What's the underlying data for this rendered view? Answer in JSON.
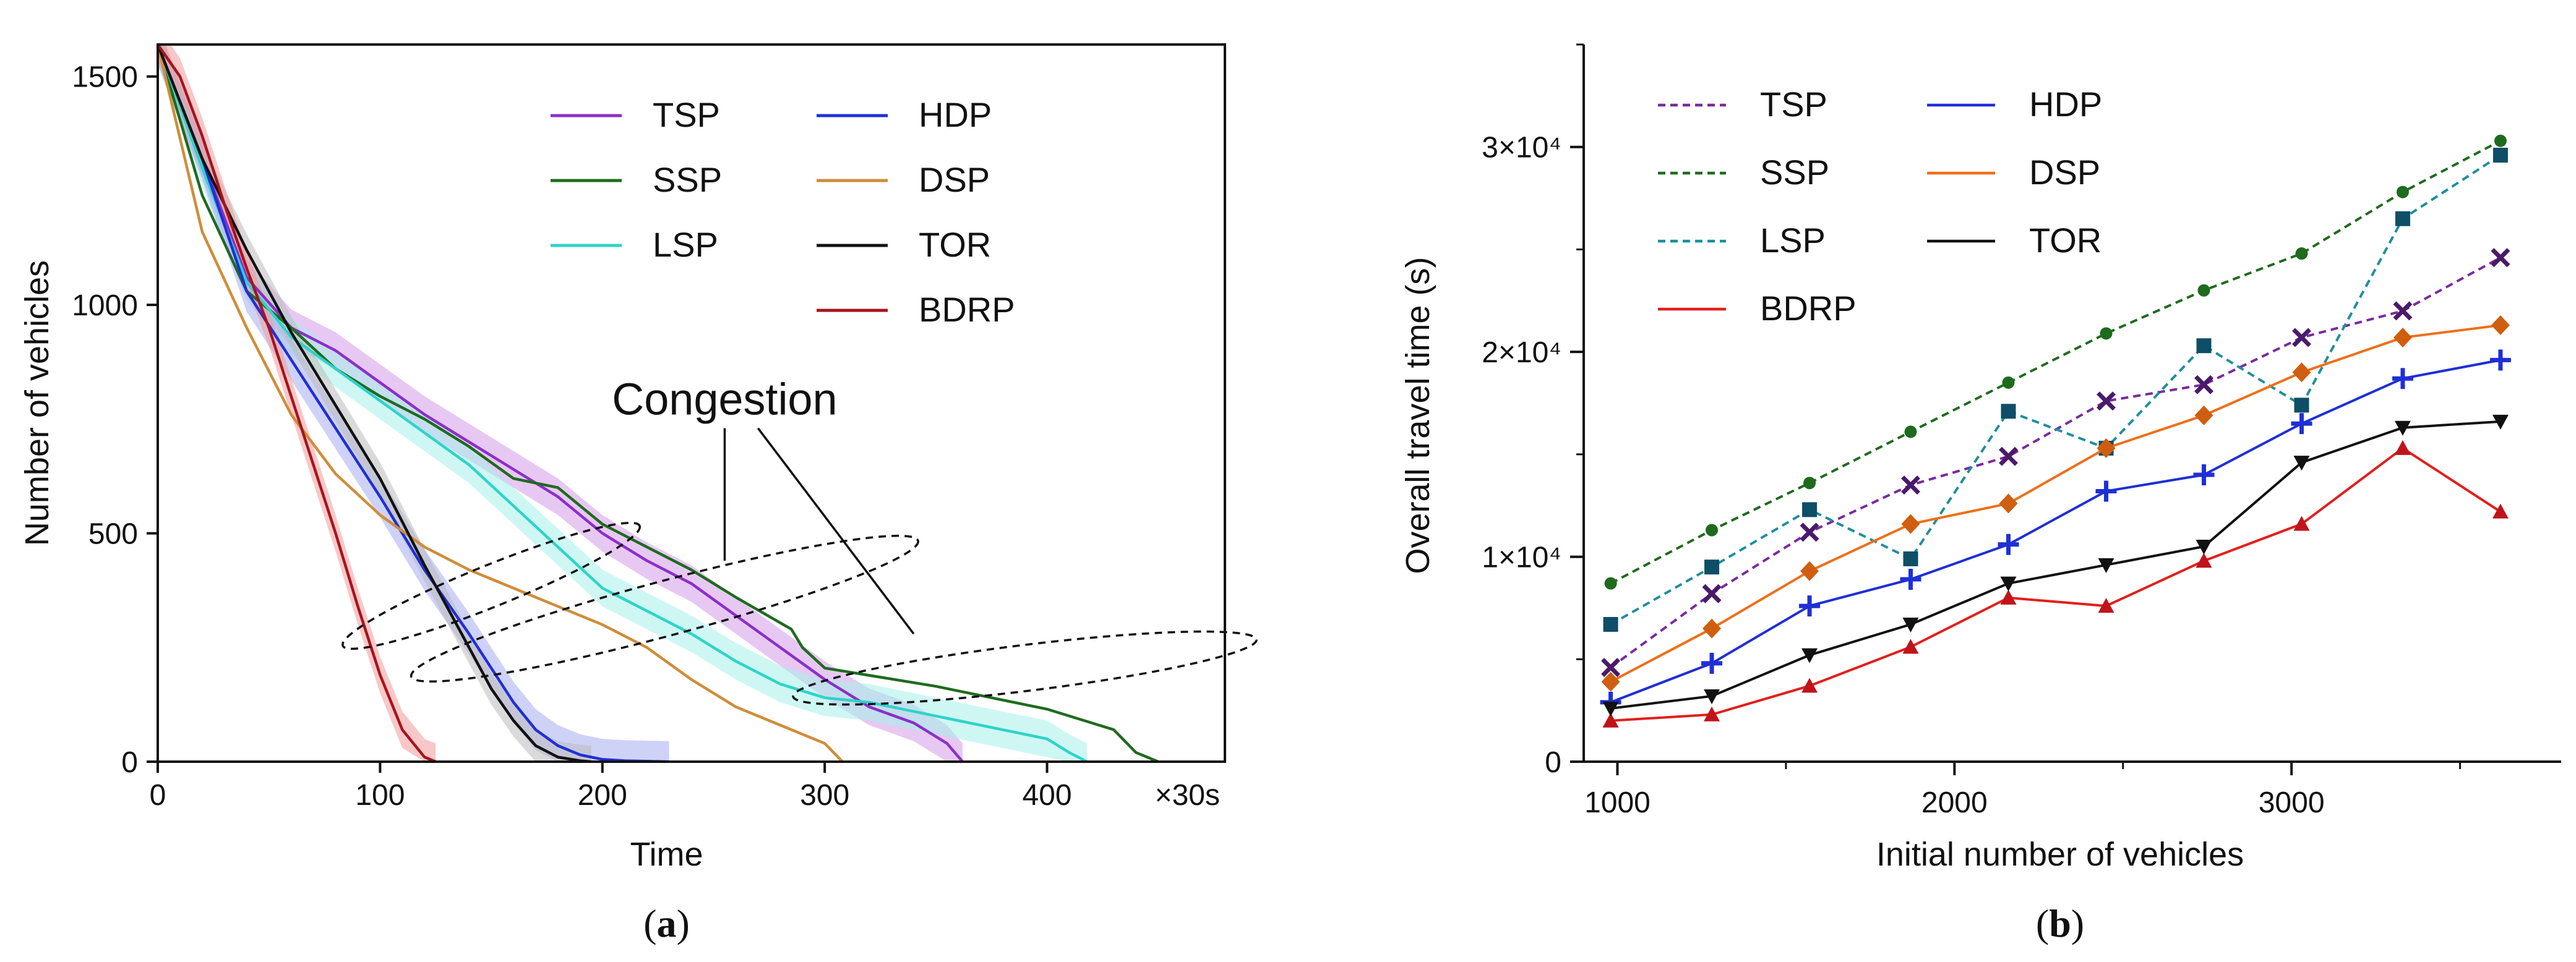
{
  "chart_data": [
    {
      "panel": "(a)",
      "panel_letter": "a",
      "type": "line",
      "xlabel": "Time",
      "ylabel": "Number of vehicles",
      "x_unit": "×30s",
      "xlim": [
        0,
        480
      ],
      "ylim": [
        0,
        1570
      ],
      "xticks": [
        0,
        100,
        200,
        300,
        400
      ],
      "yticks": [
        0,
        500,
        1000,
        1500
      ],
      "annotation": "Congestion",
      "legend_position": "top-right",
      "series": [
        {
          "name": "TSP",
          "color": "#8b2fc9",
          "band_color": "#d39be8",
          "x": [
            0,
            20,
            40,
            60,
            80,
            100,
            120,
            140,
            160,
            180,
            200,
            220,
            240,
            260,
            280,
            300,
            320,
            340,
            355,
            362
          ],
          "y": [
            1570,
            1320,
            1060,
            950,
            900,
            830,
            760,
            700,
            640,
            580,
            500,
            440,
            390,
            320,
            250,
            180,
            120,
            85,
            40,
            0
          ],
          "band": 40
        },
        {
          "name": "SSP",
          "color": "#1e6b1e",
          "x": [
            0,
            20,
            40,
            60,
            80,
            100,
            120,
            140,
            160,
            180,
            200,
            220,
            240,
            260,
            285,
            290,
            300,
            350,
            400,
            430,
            440,
            450
          ],
          "y": [
            1570,
            1240,
            1030,
            950,
            860,
            800,
            750,
            690,
            620,
            600,
            520,
            470,
            420,
            360,
            290,
            250,
            205,
            165,
            115,
            70,
            20,
            0
          ]
        },
        {
          "name": "LSP",
          "color": "#2ed3c8",
          "band_color": "#a6f0ea",
          "x": [
            0,
            20,
            40,
            60,
            80,
            100,
            120,
            140,
            160,
            180,
            200,
            220,
            240,
            260,
            280,
            300,
            320,
            340,
            360,
            380,
            400,
            410,
            418
          ],
          "y": [
            1570,
            1300,
            1050,
            930,
            860,
            790,
            720,
            650,
            560,
            470,
            380,
            330,
            280,
            220,
            170,
            140,
            130,
            110,
            90,
            70,
            50,
            20,
            0
          ],
          "band": 40
        },
        {
          "name": "HDP",
          "color": "#1f2fd6",
          "band_color": "#a7adf0",
          "x": [
            0,
            20,
            40,
            60,
            80,
            100,
            120,
            140,
            160,
            170,
            180,
            190,
            200,
            210,
            220,
            230
          ],
          "y": [
            1570,
            1320,
            1030,
            880,
            730,
            580,
            420,
            280,
            130,
            70,
            35,
            15,
            5,
            2,
            1,
            0
          ],
          "band": 45
        },
        {
          "name": "DSP",
          "color": "#cf8d3a",
          "x": [
            0,
            20,
            40,
            60,
            80,
            100,
            120,
            140,
            160,
            180,
            200,
            220,
            240,
            260,
            280,
            300,
            308
          ],
          "y": [
            1570,
            1160,
            950,
            760,
            630,
            540,
            470,
            420,
            380,
            340,
            300,
            250,
            180,
            120,
            80,
            40,
            0
          ]
        },
        {
          "name": "TOR",
          "color": "#111111",
          "band_color": "#bbbbbb",
          "x": [
            0,
            20,
            40,
            60,
            80,
            100,
            120,
            140,
            150,
            160,
            170,
            180,
            190,
            195
          ],
          "y": [
            1570,
            1320,
            1120,
            940,
            780,
            620,
            430,
            250,
            160,
            90,
            35,
            10,
            2,
            0
          ],
          "band": 35
        },
        {
          "name": "BDRP",
          "color": "#a8141c",
          "band_color": "#f29a9a",
          "x": [
            0,
            10,
            20,
            30,
            40,
            50,
            60,
            70,
            80,
            90,
            100,
            110,
            120,
            125
          ],
          "y": [
            1570,
            1500,
            1370,
            1220,
            1080,
            950,
            800,
            650,
            500,
            340,
            190,
            70,
            10,
            0
          ],
          "band": 40
        }
      ]
    },
    {
      "panel": "(b)",
      "panel_letter": "b",
      "type": "line",
      "xlabel": "Initial number of vehicles",
      "ylabel": "Overall travel time (s)",
      "xlim": [
        900,
        3800
      ],
      "ylim": [
        0,
        35000
      ],
      "xticks": [
        1000,
        2000,
        3000
      ],
      "yticks": [
        {
          "value": 0,
          "label": "0"
        },
        {
          "value": 10000,
          "label": "1×10⁴"
        },
        {
          "value": 20000,
          "label": "2×10⁴"
        },
        {
          "value": 30000,
          "label": "3×10⁴"
        }
      ],
      "legend_position": "top-left",
      "x": [
        980,
        1280,
        1570,
        1870,
        2160,
        2450,
        2740,
        3030,
        3330,
        3620
      ],
      "series": [
        {
          "name": "TSP",
          "color": "#7a2a9e",
          "marker_color": "#4a1a6a",
          "dashed": true,
          "marker": "x",
          "values": [
            4600,
            8200,
            11200,
            13500,
            14900,
            17600,
            18400,
            20700,
            22000,
            24600
          ]
        },
        {
          "name": "SSP",
          "color": "#1e6b1e",
          "dashed": true,
          "marker": "circle",
          "values": [
            8700,
            11300,
            13600,
            16100,
            18500,
            20900,
            23000,
            24800,
            27800,
            30300
          ]
        },
        {
          "name": "LSP",
          "color": "#1e8e9e",
          "marker_color": "#0e4e66",
          "dashed": true,
          "marker": "square",
          "values": [
            6700,
            9500,
            12300,
            9900,
            17100,
            15300,
            20300,
            17400,
            26500,
            29600
          ]
        },
        {
          "name": "BDRP",
          "color": "#e0201c",
          "marker_color": "#c0141a",
          "dashed": false,
          "marker": "triangle",
          "values": [
            2000,
            2300,
            3700,
            5600,
            8000,
            7600,
            9800,
            11600,
            15300,
            12200
          ]
        },
        {
          "name": "HDP",
          "color": "#1f2fd6",
          "dashed": false,
          "marker": "plus",
          "values": [
            2900,
            4800,
            7600,
            8900,
            10600,
            13200,
            14000,
            16500,
            18700,
            19600
          ]
        },
        {
          "name": "DSP",
          "color": "#ee6f1a",
          "marker_color": "#cf5e10",
          "dashed": false,
          "marker": "diamond",
          "values": [
            3900,
            6500,
            9300,
            11600,
            12600,
            15300,
            16900,
            19000,
            20700,
            21300
          ]
        },
        {
          "name": "TOR",
          "color": "#111111",
          "dashed": false,
          "marker": "triangle-down",
          "values": [
            2600,
            3200,
            5200,
            6700,
            8700,
            9600,
            10500,
            14600,
            16300,
            16600
          ]
        }
      ]
    }
  ]
}
